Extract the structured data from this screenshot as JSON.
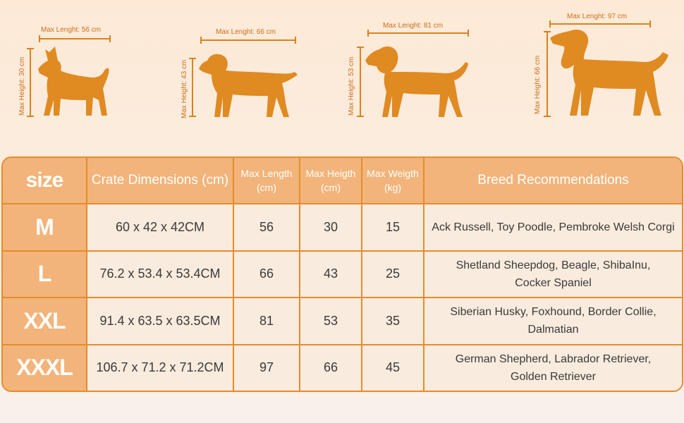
{
  "dogs": [
    {
      "length_label": "Max Lenght: 56 cm",
      "height_label": "Max Height: 30 cm"
    },
    {
      "length_label": "Max Lenght: 66 cm",
      "height_label": "Max Height: 43 cm"
    },
    {
      "length_label": "Max Lenght: 81 cm",
      "height_label": "Max Height: 53 cm"
    },
    {
      "length_label": "Max Lenght: 97 cm",
      "height_label": "Max Height: 66 cm"
    }
  ],
  "table": {
    "headers": {
      "size": "size",
      "crate": "Crate Dimensions (cm)",
      "length": "Max Length",
      "length_unit": "(cm)",
      "height": "Max Heigth",
      "height_unit": "(cm)",
      "weight": "Max Weigth",
      "weight_unit": "(kg)",
      "breed": "Breed Recommendations"
    },
    "rows": [
      {
        "size": "M",
        "crate": "60 x 42 x 42CM",
        "length": "56",
        "height": "30",
        "weight": "15",
        "breed1": "Ack Russell, Toy Poodle, Pembroke Welsh Corgi",
        "breed2": ""
      },
      {
        "size": "L",
        "crate": "76.2 x 53.4 x 53.4CM",
        "length": "66",
        "height": "43",
        "weight": "25",
        "breed1": "Shetland Sheepdog, Beagle, ShibaInu,",
        "breed2": "Cocker Spaniel"
      },
      {
        "size": "XXL",
        "crate": "91.4 x 63.5 x 63.5CM",
        "length": "81",
        "height": "53",
        "weight": "35",
        "breed1": "Siberian Husky, Foxhound, Border Collie,",
        "breed2": "Dalmatian"
      },
      {
        "size": "XXXL",
        "crate": "106.7 x 71.2 x 71.2CM",
        "length": "97",
        "height": "66",
        "weight": "45",
        "breed1": "German Shepherd, Labrador Retriever,",
        "breed2": "Golden Retriever"
      }
    ]
  },
  "colors": {
    "accent": "#e58c2c",
    "dog": "#e08a22",
    "header_fill": "#f2b47a"
  }
}
